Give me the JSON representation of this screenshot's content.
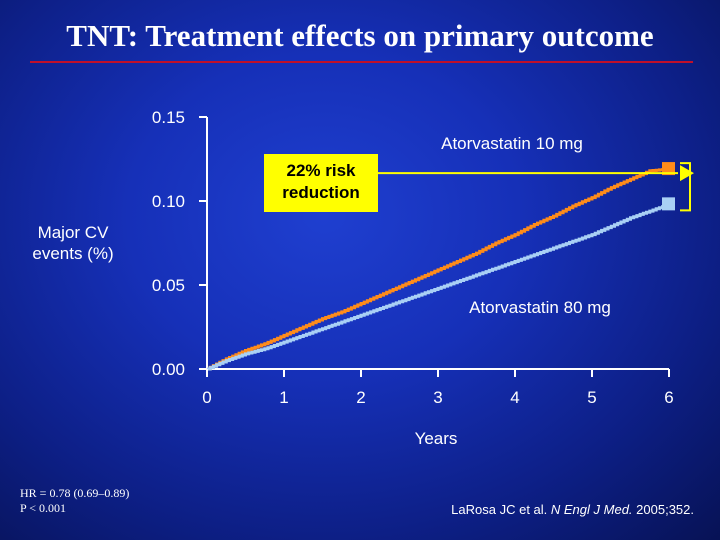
{
  "title": "TNT: Treatment effects on primary outcome",
  "callout": {
    "line1": "22% risk",
    "line2": "reduction"
  },
  "footnote": {
    "hr": "HR = 0.78 (0.69–0.89)",
    "p": "P < 0.001"
  },
  "citation": {
    "authors": "LaRosa JC et al. ",
    "journal": "N Engl J Med.",
    "rest": " 2005;352."
  },
  "colors": {
    "title_rule": "#c0102a",
    "series_10mg": "#ff8c1a",
    "series_80mg": "#a9d0f5",
    "callout_bg": "#ffff00",
    "arrow": "#ffff00"
  },
  "chart_data": {
    "type": "line",
    "title": "",
    "xlabel": "Years",
    "ylabel_lines": [
      "Major CV",
      "events (%)"
    ],
    "xlim": [
      0,
      6
    ],
    "ylim": [
      0,
      0.15
    ],
    "x_ticks": [
      "0",
      "1",
      "2",
      "3",
      "4",
      "5",
      "6"
    ],
    "y_ticks": [
      "0.00",
      "0.05",
      "0.10",
      "0.15"
    ],
    "grid": false,
    "series": [
      {
        "name": "Atorvastatin 10 mg",
        "x": [
          0,
          0.25,
          0.5,
          0.75,
          1,
          1.25,
          1.5,
          1.75,
          2,
          2.25,
          2.5,
          2.75,
          3,
          3.25,
          3.5,
          3.75,
          4,
          4.25,
          4.5,
          4.75,
          5,
          5.25,
          5.5,
          5.75,
          6
        ],
        "y": [
          0,
          0.006,
          0.011,
          0.015,
          0.02,
          0.025,
          0.03,
          0.034,
          0.039,
          0.044,
          0.049,
          0.054,
          0.059,
          0.064,
          0.069,
          0.075,
          0.08,
          0.086,
          0.091,
          0.097,
          0.102,
          0.108,
          0.113,
          0.118,
          0.119
        ]
      },
      {
        "name": "Atorvastatin 80 mg",
        "x": [
          0,
          0.25,
          0.5,
          0.75,
          1,
          1.25,
          1.5,
          1.75,
          2,
          2.25,
          2.5,
          2.75,
          3,
          3.25,
          3.5,
          3.75,
          4,
          4.25,
          4.5,
          4.75,
          5,
          5.25,
          5.5,
          5.75,
          6
        ],
        "y": [
          0,
          0.005,
          0.009,
          0.012,
          0.016,
          0.02,
          0.024,
          0.028,
          0.032,
          0.036,
          0.04,
          0.044,
          0.048,
          0.052,
          0.056,
          0.06,
          0.064,
          0.068,
          0.072,
          0.076,
          0.08,
          0.085,
          0.09,
          0.094,
          0.098
        ]
      }
    ]
  }
}
